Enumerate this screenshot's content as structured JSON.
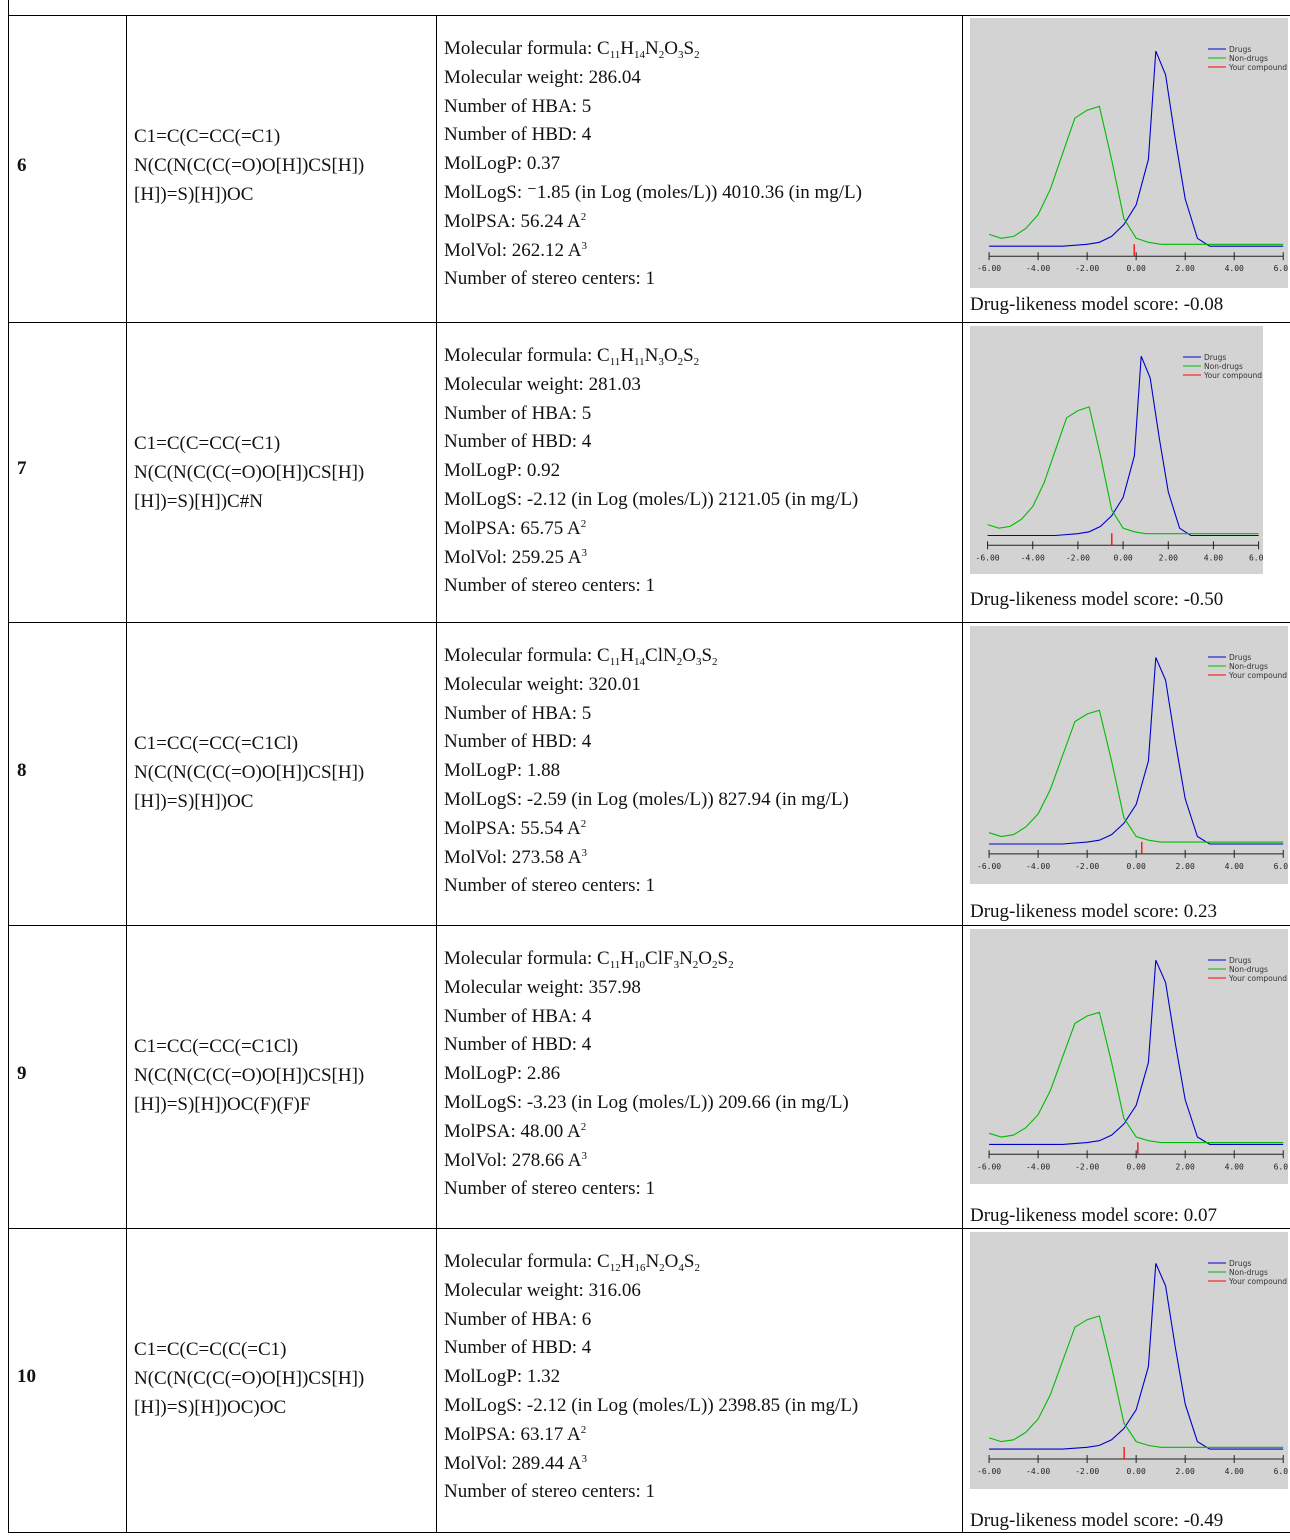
{
  "rows": [
    {
      "num": "6",
      "smiles": [
        "C1=C(C=CC(=C1)",
        "N(C(N(C(C(=O)O[H])CS[H])",
        "[H])=S)[H])OC"
      ],
      "formula": [
        [
          "C",
          "11"
        ],
        [
          "H",
          "14"
        ],
        [
          "N",
          "2"
        ],
        [
          "O",
          "3"
        ],
        [
          "S",
          "2"
        ]
      ],
      "formula_prefix": "Molecular formula: ",
      "mol_weight": "Molecular weight: 286.04",
      "hba": "Number of HBA: 5",
      "hbd": "Number of HBD: 4",
      "logp": "MolLogP: 0.37",
      "logs": "MolLogS: ⁻1.85 (in Log (moles/L)) 4010.36 (in mg/L)",
      "psa": [
        "MolPSA: 56.24 A",
        "2"
      ],
      "vol": [
        "MolVol: 262.12 A",
        "3"
      ],
      "stereo": "Number of stereo centers: 1",
      "score": "Drug-likeness model score: -0.08",
      "chart": {
        "compound_x": -0.08
      }
    },
    {
      "num": "7",
      "smiles": [
        "C1=C(C=CC(=C1)",
        "N(C(N(C(C(=O)O[H])CS[H])",
        "[H])=S)[H])C#N"
      ],
      "formula": [
        [
          "C",
          "11"
        ],
        [
          "H",
          "11"
        ],
        [
          "N",
          "3"
        ],
        [
          "O",
          "2"
        ],
        [
          "S",
          "2"
        ]
      ],
      "formula_prefix": "Molecular formula: ",
      "mol_weight": "Molecular weight: 281.03",
      "hba": "Number of HBA: 5",
      "hbd": "Number of HBD: 4",
      "logp": "MolLogP: 0.92",
      "logs": "MolLogS: -2.12 (in Log (moles/L)) 2121.05 (in mg/L)",
      "psa": [
        "MolPSA: 65.75 A",
        "2"
      ],
      "vol": [
        "MolVol: 259.25 A",
        "3"
      ],
      "stereo": "Number of stereo centers: 1",
      "score": "Drug-likeness model score: -0.50",
      "chart": {
        "compound_x": -0.5
      }
    },
    {
      "num": "8",
      "smiles": [
        "C1=CC(=CC(=C1Cl)",
        "N(C(N(C(C(=O)O[H])CS[H])",
        "[H])=S)[H])OC"
      ],
      "formula": [
        [
          "C",
          "11"
        ],
        [
          "H",
          "14"
        ],
        [
          "ClN",
          "2"
        ],
        [
          "O",
          "3"
        ],
        [
          "S",
          "2"
        ]
      ],
      "formula_prefix": "Molecular formula: ",
      "mol_weight": "Molecular weight: 320.01",
      "hba": "Number of HBA: 5",
      "hbd": "Number of HBD: 4",
      "logp": "MolLogP: 1.88",
      "logs": "MolLogS: -2.59 (in Log (moles/L)) 827.94 (in mg/L)",
      "psa": [
        "MolPSA: 55.54 A",
        "2"
      ],
      "vol": [
        "MolVol: 273.58 A",
        "3"
      ],
      "stereo": "Number of stereo centers: 1",
      "score": "Drug-likeness model score: 0.23",
      "chart": {
        "compound_x": 0.23
      }
    },
    {
      "num": "9",
      "smiles": [
        "C1=CC(=CC(=C1Cl)",
        "N(C(N(C(C(=O)O[H])CS[H])",
        "[H])=S)[H])OC(F)(F)F"
      ],
      "formula": [
        [
          "C",
          "11"
        ],
        [
          "H",
          "10"
        ],
        [
          "ClF",
          "3"
        ],
        [
          "N",
          "2"
        ],
        [
          "O",
          "2"
        ],
        [
          "S",
          "2"
        ]
      ],
      "formula_prefix": "Molecular formula: ",
      "mol_weight": "Molecular weight: 357.98",
      "hba": "Number of HBA: 4",
      "hbd": "Number of HBD: 4",
      "logp": "MolLogP: 2.86",
      "logs": "MolLogS: -3.23 (in Log (moles/L)) 209.66 (in mg/L)",
      "psa": [
        "MolPSA: 48.00 A",
        "2"
      ],
      "vol": [
        "MolVol: 278.66 A",
        "3"
      ],
      "stereo": "Number of stereo centers: 1",
      "score": "Drug-likeness model score: 0.07",
      "chart": {
        "compound_x": 0.07
      }
    },
    {
      "num": "10",
      "smiles": [
        "C1=C(C=C(C(=C1)",
        "N(C(N(C(C(=O)O[H])CS[H])",
        "[H])=S)[H])OC)OC"
      ],
      "formula": [
        [
          "C",
          "12"
        ],
        [
          "H",
          "16"
        ],
        [
          "N",
          "2"
        ],
        [
          "O",
          "4"
        ],
        [
          "S",
          "2"
        ]
      ],
      "formula_prefix": "Molecular formula: ",
      "mol_weight": "Molecular weight: 316.06",
      "hba": "Number of HBA: 6",
      "hbd": "Number of HBD: 4",
      "logp": "MolLogP: 1.32",
      "logs": "MolLogS: -2.12 (in Log (moles/L)) 2398.85 (in mg/L)",
      "psa": [
        "MolPSA: 63.17 A",
        "2"
      ],
      "vol": [
        "MolVol: 289.44 A",
        "3"
      ],
      "stereo": "Number of stereo centers: 1",
      "score": "Drug-likeness model score: -0.49",
      "chart": {
        "compound_x": -0.49
      }
    }
  ],
  "chart_data": {
    "type": "line",
    "legend": [
      "Drugs",
      "Non-drugs",
      "Your compound"
    ],
    "legend_position": "top-right",
    "colors": {
      "Drugs": "#0000cc",
      "Non-drugs": "#00bb00",
      "Your compound": "#ff0000",
      "background": "#d3d3d3"
    },
    "xlim": [
      -6,
      6
    ],
    "xticks": [
      "-6.00",
      "-4.00",
      "-2.00",
      "0.00",
      "2.00",
      "4.00",
      "6.00"
    ],
    "series": [
      {
        "name": "Drugs",
        "x": [
          -6,
          -5,
          -4,
          -3,
          -2,
          -1.5,
          -1,
          -0.5,
          0,
          0.5,
          0.8,
          1.2,
          1.6,
          2,
          2.5,
          3,
          4,
          5,
          6
        ],
        "y": [
          0.01,
          0.01,
          0.01,
          0.01,
          0.02,
          0.03,
          0.06,
          0.12,
          0.22,
          0.45,
          1.0,
          0.88,
          0.55,
          0.25,
          0.05,
          0.01,
          0.01,
          0.01,
          0.01
        ]
      },
      {
        "name": "Non-drugs",
        "x": [
          -6,
          -5.5,
          -5,
          -4.5,
          -4,
          -3.5,
          -3,
          -2.5,
          -2,
          -1.5,
          -1,
          -0.5,
          0,
          0.5,
          1,
          2,
          3,
          4,
          5,
          6
        ],
        "y": [
          0.07,
          0.05,
          0.06,
          0.1,
          0.17,
          0.3,
          0.48,
          0.66,
          0.7,
          0.72,
          0.45,
          0.15,
          0.05,
          0.03,
          0.02,
          0.02,
          0.02,
          0.02,
          0.02,
          0.02
        ]
      }
    ]
  }
}
